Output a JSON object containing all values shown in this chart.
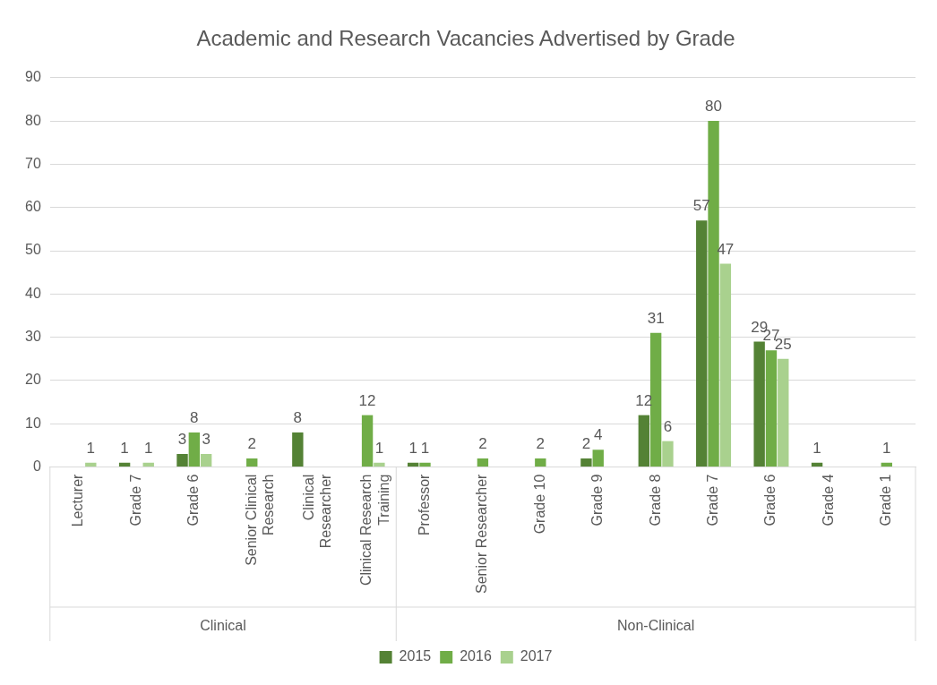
{
  "chart_data": {
    "type": "bar",
    "title": "Academic and Research Vacancies Advertised by Grade",
    "categories": [
      "Lecturer",
      "Grade 7",
      "Grade 6",
      "Senior Clinical Research",
      "Clinical Researcher",
      "Clinical Research Training",
      "Professor",
      "Senior Researcher",
      "Grade 10",
      "Grade 9",
      "Grade 8",
      "Grade 7",
      "Grade 6",
      "Grade 4",
      "Grade 1"
    ],
    "series": [
      {
        "name": "2015",
        "color": "#548235",
        "values": [
          null,
          1,
          3,
          null,
          8,
          null,
          1,
          null,
          null,
          2,
          12,
          57,
          29,
          1,
          null
        ]
      },
      {
        "name": "2016",
        "color": "#70ad47",
        "values": [
          null,
          null,
          8,
          2,
          null,
          12,
          1,
          2,
          2,
          4,
          31,
          80,
          27,
          null,
          1
        ]
      },
      {
        "name": "2017",
        "color": "#a9d18e",
        "values": [
          1,
          1,
          3,
          null,
          null,
          1,
          null,
          null,
          null,
          null,
          6,
          47,
          25,
          null,
          null
        ]
      }
    ],
    "annotations": [
      "Clinical",
      "Non-Clinical"
    ],
    "ylim": [
      0,
      90
    ],
    "yticks": [
      0,
      10,
      20,
      30,
      40,
      50,
      60,
      70,
      80,
      90
    ],
    "grid": "y",
    "legend": "bottom",
    "data_labels": true
  }
}
